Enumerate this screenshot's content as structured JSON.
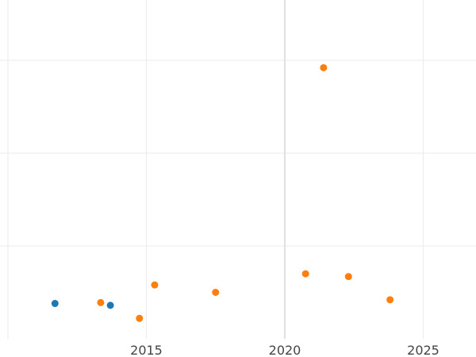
{
  "chart_data": {
    "type": "scatter",
    "title": "",
    "xlabel": "",
    "ylabel": "",
    "xlim": [
      2010,
      2027
    ],
    "ylim": [
      0,
      3.65
    ],
    "x_ticks": [
      2015,
      2020,
      2025
    ],
    "x_tick_labels": [
      "2015",
      "2020",
      "2025"
    ],
    "x_gridlines": [
      2010,
      2015,
      2020,
      2025
    ],
    "y_gridlines": [
      1,
      2,
      3
    ],
    "y_tick_labels_shown": false,
    "grid": true,
    "legend": "none",
    "series": [
      {
        "color": "#1f77b4",
        "points": [
          {
            "x": 2011.7,
            "y": 0.38
          },
          {
            "x": 2013.7,
            "y": 0.36
          }
        ]
      },
      {
        "color": "#ff7f0e",
        "points": [
          {
            "x": 2013.35,
            "y": 0.39
          },
          {
            "x": 2014.75,
            "y": 0.22
          },
          {
            "x": 2015.3,
            "y": 0.58
          },
          {
            "x": 2017.5,
            "y": 0.5
          },
          {
            "x": 2020.75,
            "y": 0.7
          },
          {
            "x": 2021.4,
            "y": 2.92
          },
          {
            "x": 2022.3,
            "y": 0.67
          },
          {
            "x": 2023.8,
            "y": 0.42
          }
        ]
      }
    ]
  }
}
